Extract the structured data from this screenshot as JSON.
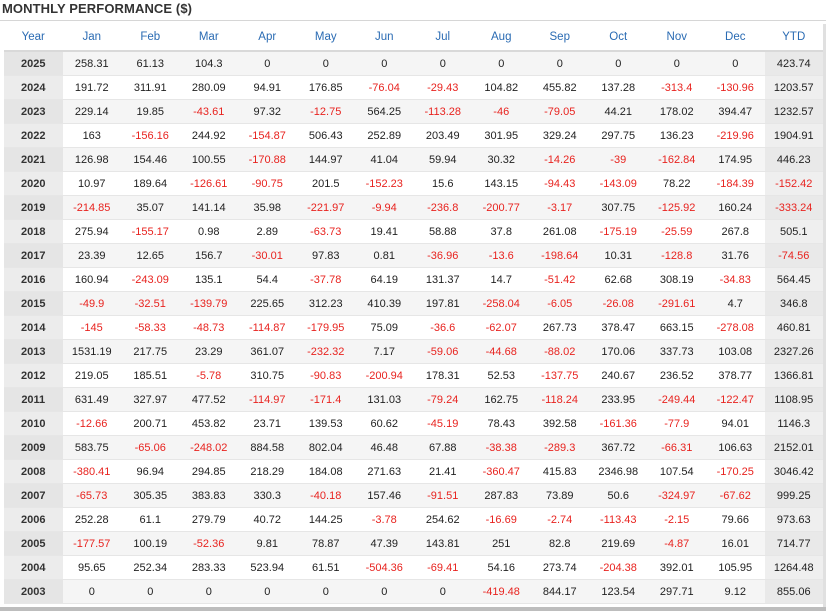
{
  "title": "MONTHLY PERFORMANCE ($)",
  "columns": [
    "Year",
    "Jan",
    "Feb",
    "Mar",
    "Apr",
    "May",
    "Jun",
    "Jul",
    "Aug",
    "Sep",
    "Oct",
    "Nov",
    "Dec",
    "YTD"
  ],
  "rows": [
    [
      "2025",
      "258.31",
      "61.13",
      "104.3",
      "0",
      "0",
      "0",
      "0",
      "0",
      "0",
      "0",
      "0",
      "0",
      "423.74"
    ],
    [
      "2024",
      "191.72",
      "311.91",
      "280.09",
      "94.91",
      "176.85",
      "-76.04",
      "-29.43",
      "104.82",
      "455.82",
      "137.28",
      "-313.4",
      "-130.96",
      "1203.57"
    ],
    [
      "2023",
      "229.14",
      "19.85",
      "-43.61",
      "97.32",
      "-12.75",
      "564.25",
      "-113.28",
      "-46",
      "-79.05",
      "44.21",
      "178.02",
      "394.47",
      "1232.57"
    ],
    [
      "2022",
      "163",
      "-156.16",
      "244.92",
      "-154.87",
      "506.43",
      "252.89",
      "203.49",
      "301.95",
      "329.24",
      "297.75",
      "136.23",
      "-219.96",
      "1904.91"
    ],
    [
      "2021",
      "126.98",
      "154.46",
      "100.55",
      "-170.88",
      "144.97",
      "41.04",
      "59.94",
      "30.32",
      "-14.26",
      "-39",
      "-162.84",
      "174.95",
      "446.23"
    ],
    [
      "2020",
      "10.97",
      "189.64",
      "-126.61",
      "-90.75",
      "201.5",
      "-152.23",
      "15.6",
      "143.15",
      "-94.43",
      "-143.09",
      "78.22",
      "-184.39",
      "-152.42"
    ],
    [
      "2019",
      "-214.85",
      "35.07",
      "141.14",
      "35.98",
      "-221.97",
      "-9.94",
      "-236.8",
      "-200.77",
      "-3.17",
      "307.75",
      "-125.92",
      "160.24",
      "-333.24"
    ],
    [
      "2018",
      "275.94",
      "-155.17",
      "0.98",
      "2.89",
      "-63.73",
      "19.41",
      "58.88",
      "37.8",
      "261.08",
      "-175.19",
      "-25.59",
      "267.8",
      "505.1"
    ],
    [
      "2017",
      "23.39",
      "12.65",
      "156.7",
      "-30.01",
      "97.83",
      "0.81",
      "-36.96",
      "-13.6",
      "-198.64",
      "10.31",
      "-128.8",
      "31.76",
      "-74.56"
    ],
    [
      "2016",
      "160.94",
      "-243.09",
      "135.1",
      "54.4",
      "-37.78",
      "64.19",
      "131.37",
      "14.7",
      "-51.42",
      "62.68",
      "308.19",
      "-34.83",
      "564.45"
    ],
    [
      "2015",
      "-49.9",
      "-32.51",
      "-139.79",
      "225.65",
      "312.23",
      "410.39",
      "197.81",
      "-258.04",
      "-6.05",
      "-26.08",
      "-291.61",
      "4.7",
      "346.8"
    ],
    [
      "2014",
      "-145",
      "-58.33",
      "-48.73",
      "-114.87",
      "-179.95",
      "75.09",
      "-36.6",
      "-62.07",
      "267.73",
      "378.47",
      "663.15",
      "-278.08",
      "460.81"
    ],
    [
      "2013",
      "1531.19",
      "217.75",
      "23.29",
      "361.07",
      "-232.32",
      "7.17",
      "-59.06",
      "-44.68",
      "-88.02",
      "170.06",
      "337.73",
      "103.08",
      "2327.26"
    ],
    [
      "2012",
      "219.05",
      "185.51",
      "-5.78",
      "310.75",
      "-90.83",
      "-200.94",
      "178.31",
      "52.53",
      "-137.75",
      "240.67",
      "236.52",
      "378.77",
      "1366.81"
    ],
    [
      "2011",
      "631.49",
      "327.97",
      "477.52",
      "-114.97",
      "-171.4",
      "131.03",
      "-79.24",
      "162.75",
      "-118.24",
      "233.95",
      "-249.44",
      "-122.47",
      "1108.95"
    ],
    [
      "2010",
      "-12.66",
      "200.71",
      "453.82",
      "23.71",
      "139.53",
      "60.62",
      "-45.19",
      "78.43",
      "392.58",
      "-161.36",
      "-77.9",
      "94.01",
      "1146.3"
    ],
    [
      "2009",
      "583.75",
      "-65.06",
      "-248.02",
      "884.58",
      "802.04",
      "46.48",
      "67.88",
      "-38.38",
      "-289.3",
      "367.72",
      "-66.31",
      "106.63",
      "2152.01"
    ],
    [
      "2008",
      "-380.41",
      "96.94",
      "294.85",
      "218.29",
      "184.08",
      "271.63",
      "21.41",
      "-360.47",
      "415.83",
      "2346.98",
      "107.54",
      "-170.25",
      "3046.42"
    ],
    [
      "2007",
      "-65.73",
      "305.35",
      "383.83",
      "330.3",
      "-40.18",
      "157.46",
      "-91.51",
      "287.83",
      "73.89",
      "50.6",
      "-324.97",
      "-67.62",
      "999.25"
    ],
    [
      "2006",
      "252.28",
      "61.1",
      "279.79",
      "40.72",
      "144.25",
      "-3.78",
      "254.62",
      "-16.69",
      "-2.74",
      "-113.43",
      "-2.15",
      "79.66",
      "973.63"
    ],
    [
      "2005",
      "-177.57",
      "100.19",
      "-52.36",
      "9.81",
      "78.87",
      "47.39",
      "143.81",
      "251",
      "82.8",
      "219.69",
      "-4.87",
      "16.01",
      "714.77"
    ],
    [
      "2004",
      "95.65",
      "252.34",
      "283.33",
      "523.94",
      "61.51",
      "-504.36",
      "-69.41",
      "54.16",
      "273.74",
      "-204.38",
      "392.01",
      "105.95",
      "1264.48"
    ],
    [
      "2003",
      "0",
      "0",
      "0",
      "0",
      "0",
      "0",
      "0",
      "-419.48",
      "844.17",
      "123.54",
      "297.71",
      "9.12",
      "855.06"
    ]
  ],
  "colors": {
    "negative": "#e8231f",
    "header": "#2a6bb3"
  }
}
